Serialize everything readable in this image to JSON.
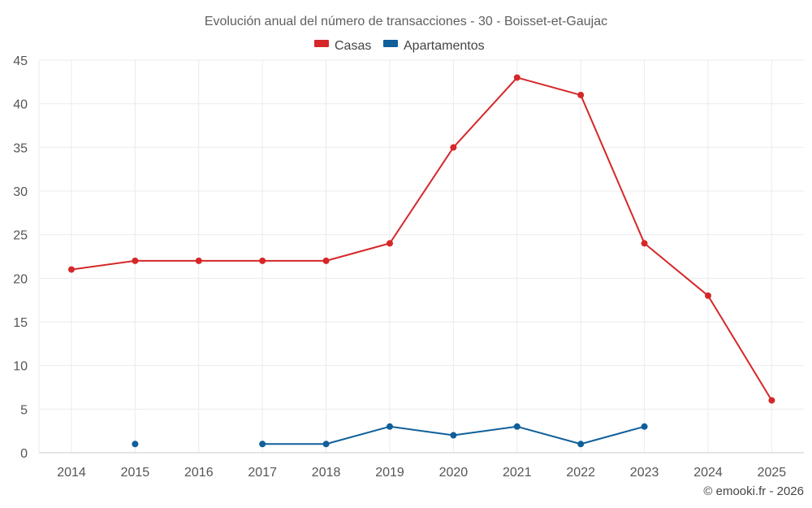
{
  "chart_data": {
    "type": "line",
    "title": "Evolución anual del número de transacciones - 30 - Boisset-et-Gaujac",
    "categories": [
      "2014",
      "2015",
      "2016",
      "2017",
      "2018",
      "2019",
      "2020",
      "2021",
      "2022",
      "2023",
      "2024",
      "2025"
    ],
    "yticks": [
      "0",
      "5",
      "10",
      "15",
      "20",
      "25",
      "30",
      "35",
      "40",
      "45"
    ],
    "ylim": [
      0,
      45
    ],
    "xlabel": "",
    "ylabel": "",
    "grid": true,
    "legend_position": "top-center",
    "series": [
      {
        "name": "Casas",
        "color": "#d62728",
        "values": [
          21,
          22,
          22,
          22,
          22,
          24,
          35,
          43,
          41,
          24,
          18,
          6
        ]
      },
      {
        "name": "Apartamentos",
        "color": "#0f5f9a",
        "values": [
          null,
          1,
          null,
          1,
          1,
          3,
          2,
          3,
          1,
          3,
          null,
          null
        ]
      }
    ]
  },
  "credit": "© emooki.fr - 2026"
}
